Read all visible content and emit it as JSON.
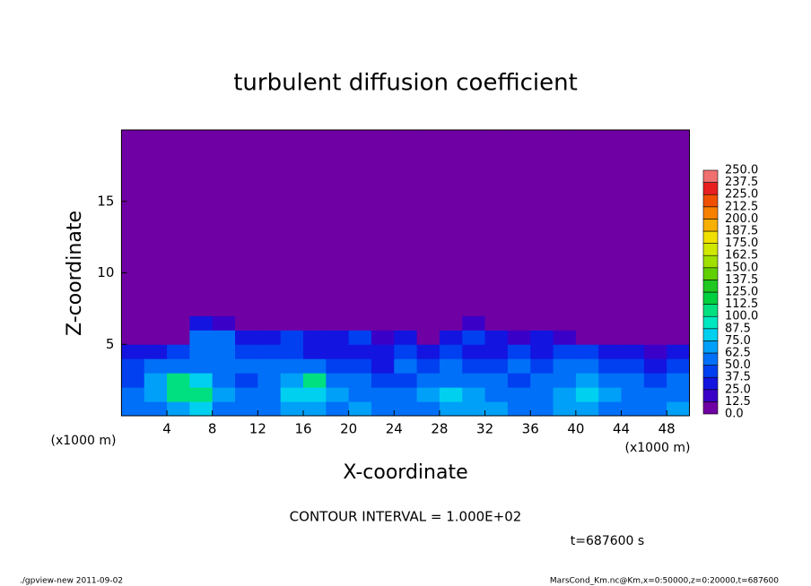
{
  "chart_data": {
    "type": "heatmap",
    "title": "turbulent diffusion coefficient",
    "xlabel": "X-coordinate",
    "ylabel": "Z-coordinate",
    "xunit": "(x1000 m)",
    "yunit": "(x1000 m)",
    "contour_interval": "CONTOUR INTERVAL = 1.000E+02",
    "time_label": "t=687600 s",
    "footer_left": "./gpview-new   2011-09-02",
    "footer_right": "MarsCond_Km.nc@Km,x=0:50000,z=0:20000,t=687600",
    "xlim": [
      0,
      50
    ],
    "ylim": [
      0,
      20
    ],
    "xticks": [
      4,
      8,
      12,
      16,
      20,
      24,
      28,
      32,
      36,
      40,
      44,
      48
    ],
    "yticks": [
      5,
      10,
      15
    ],
    "xbins": [
      0,
      2,
      4,
      6,
      8,
      10,
      12,
      14,
      16,
      18,
      20,
      22,
      24,
      26,
      28,
      30,
      32,
      34,
      36,
      38,
      40,
      42,
      44,
      46,
      48,
      50
    ],
    "ybins": [
      0,
      1,
      2,
      3,
      4,
      5,
      6,
      7,
      20
    ],
    "values": [
      [
        50,
        60,
        70,
        75,
        60,
        55,
        60,
        70,
        65,
        60,
        70,
        60,
        55,
        60,
        65,
        70,
        65,
        60,
        55,
        65,
        70,
        60,
        55,
        60,
        65
      ],
      [
        55,
        65,
        100,
        110,
        70,
        50,
        60,
        75,
        80,
        70,
        60,
        55,
        60,
        70,
        75,
        65,
        60,
        55,
        60,
        70,
        75,
        65,
        60,
        55,
        60
      ],
      [
        45,
        70,
        105,
        80,
        60,
        45,
        55,
        65,
        100,
        60,
        50,
        45,
        40,
        55,
        60,
        55,
        50,
        45,
        55,
        60,
        65,
        60,
        50,
        45,
        50
      ],
      [
        40,
        55,
        60,
        50,
        60,
        50,
        60,
        55,
        50,
        40,
        45,
        35,
        50,
        40,
        50,
        45,
        40,
        50,
        45,
        55,
        50,
        45,
        40,
        35,
        40
      ],
      [
        30,
        35,
        40,
        60,
        55,
        40,
        45,
        40,
        35,
        30,
        35,
        30,
        40,
        30,
        40,
        35,
        30,
        40,
        30,
        40,
        45,
        30,
        25,
        20,
        25
      ],
      [
        0,
        0,
        0,
        50,
        60,
        30,
        35,
        40,
        30,
        35,
        40,
        20,
        30,
        0,
        35,
        40,
        25,
        15,
        30,
        20,
        0,
        0,
        0,
        0,
        0
      ],
      [
        0,
        0,
        0,
        30,
        20,
        0,
        0,
        0,
        0,
        0,
        0,
        0,
        0,
        0,
        0,
        15,
        0,
        0,
        0,
        0,
        0,
        0,
        0,
        0,
        0
      ],
      [
        0,
        0,
        0,
        0,
        0,
        0,
        0,
        0,
        0,
        0,
        0,
        0,
        0,
        0,
        0,
        0,
        0,
        0,
        0,
        0,
        0,
        0,
        0,
        0,
        0
      ]
    ],
    "colorbar": {
      "levels": [
        {
          "value": 0,
          "label": "0.0"
        },
        12.5,
        {
          "value": 25,
          "label": "25.0"
        },
        37.5,
        {
          "value": 50,
          "label": "50.0"
        },
        62.5,
        {
          "value": 75,
          "label": "75.0"
        },
        87.5,
        {
          "value": 100,
          "label": "100.0"
        },
        112.5,
        {
          "value": 125,
          "label": "125.0"
        },
        137.5,
        {
          "value": 150,
          "label": "150.0"
        },
        162.5,
        {
          "value": 175,
          "label": "175.0"
        },
        187.5,
        {
          "value": 200,
          "label": "200.0"
        },
        212.5,
        {
          "value": 225,
          "label": "225.0"
        },
        237.5,
        {
          "value": 250,
          "label": "250.0"
        }
      ],
      "colors": [
        "#6f00a3",
        "#3a00c8",
        "#1414e0",
        "#0040f0",
        "#0070f8",
        "#00a0f8",
        "#00d0f0",
        "#00e8c0",
        "#00e080",
        "#00d040",
        "#20c820",
        "#60d000",
        "#a0e000",
        "#d0e800",
        "#f0e000",
        "#f8b000",
        "#f88000",
        "#f05000",
        "#e82020",
        "#f07070"
      ]
    }
  }
}
